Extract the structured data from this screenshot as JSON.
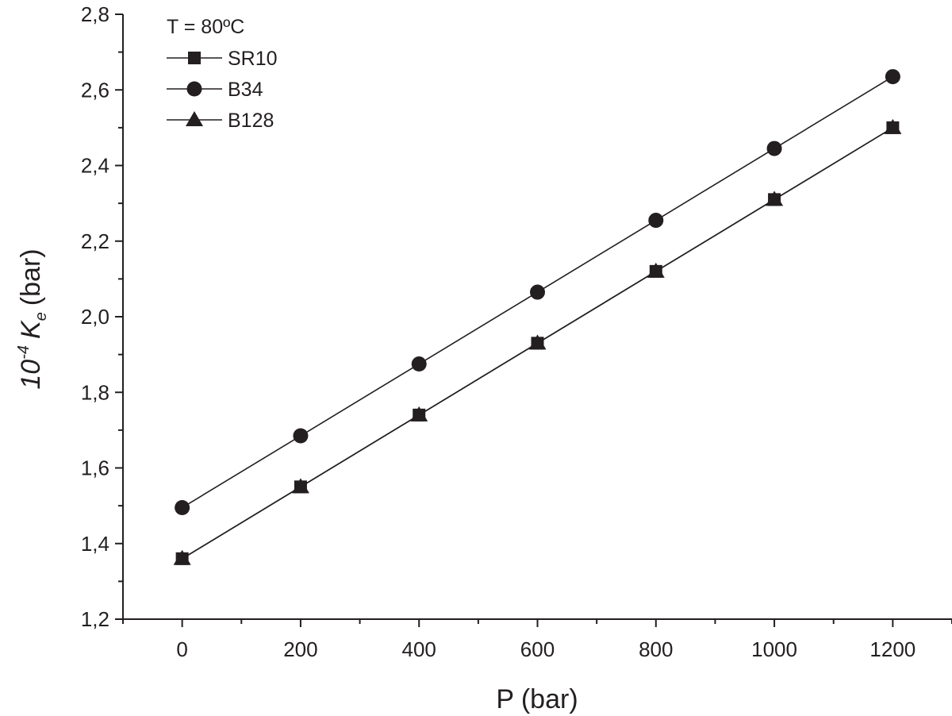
{
  "chart_data": {
    "type": "line",
    "xlabel": "P (bar)",
    "ylabel": {
      "prefix": "10",
      "exponent": "-4",
      "symbol": "K",
      "subscript": "e",
      "unit": "(bar)"
    },
    "xlim": [
      -100,
      1300
    ],
    "ylim": [
      1.2,
      2.8
    ],
    "x_ticks": [
      0,
      200,
      400,
      600,
      800,
      1000,
      1200
    ],
    "x_tick_labels": [
      "0",
      "200",
      "400",
      "600",
      "800",
      "1000",
      "1200"
    ],
    "y_ticks": [
      1.2,
      1.4,
      1.6,
      1.8,
      2.0,
      2.2,
      2.4,
      2.6,
      2.8
    ],
    "y_tick_labels": [
      "1,2",
      "1,4",
      "1,6",
      "1,8",
      "2,0",
      "2,2",
      "2,4",
      "2,6",
      "2,8"
    ],
    "grid": false,
    "legend": {
      "placement": "top-left",
      "title": "T = 80ºC"
    },
    "x": [
      0,
      200,
      400,
      600,
      800,
      1000,
      1200
    ],
    "series": [
      {
        "name": "SR10",
        "marker": "square",
        "values": [
          1.36,
          1.55,
          1.74,
          1.93,
          2.12,
          2.31,
          2.5
        ]
      },
      {
        "name": "B34",
        "marker": "circle",
        "values": [
          1.495,
          1.685,
          1.875,
          2.065,
          2.255,
          2.445,
          2.635
        ]
      },
      {
        "name": "B128",
        "marker": "triangle",
        "values": [
          1.36,
          1.55,
          1.74,
          1.93,
          2.12,
          2.31,
          2.5
        ]
      }
    ],
    "color": "#231f20"
  }
}
